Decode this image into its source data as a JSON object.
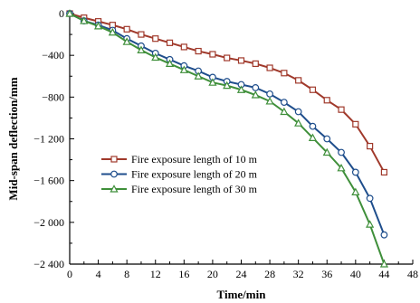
{
  "chart_data": {
    "type": "line",
    "xlabel": "Time/min",
    "ylabel": "Mid-span deflection/mm",
    "xlim": [
      0,
      48
    ],
    "ylim": [
      -2400,
      0
    ],
    "x_ticks": [
      0,
      4,
      8,
      12,
      16,
      20,
      24,
      28,
      32,
      36,
      40,
      44,
      48
    ],
    "y_ticks": [
      0,
      -400,
      -800,
      -1200,
      -1600,
      -2000,
      -2400
    ],
    "x_tick_labels": [
      "0",
      "4",
      "8",
      "12",
      "16",
      "20",
      "24",
      "28",
      "32",
      "36",
      "40",
      "44",
      "48"
    ],
    "y_tick_labels": [
      "0",
      "−400",
      "−800",
      "−1 200",
      "−1 600",
      "−2 000",
      "−2 400"
    ],
    "grid": false,
    "legend_position": "center-left",
    "series": [
      {
        "name": "Fire exposure length of 10 m",
        "color": "#a0392b",
        "marker": "square",
        "x": [
          0,
          2,
          4,
          6,
          8,
          10,
          12,
          14,
          16,
          18,
          20,
          22,
          24,
          26,
          28,
          30,
          32,
          34,
          36,
          38,
          40,
          42,
          44
        ],
        "y": [
          0,
          -40,
          -75,
          -110,
          -150,
          -200,
          -240,
          -280,
          -320,
          -360,
          -390,
          -425,
          -450,
          -480,
          -520,
          -570,
          -640,
          -730,
          -830,
          -920,
          -1060,
          -1270,
          -1520
        ]
      },
      {
        "name": "Fire exposure length of 20 m",
        "color": "#1f4e8c",
        "marker": "circle",
        "x": [
          0,
          2,
          4,
          6,
          8,
          10,
          12,
          14,
          16,
          18,
          20,
          22,
          24,
          26,
          28,
          30,
          32,
          34,
          36,
          38,
          40,
          42,
          44
        ],
        "y": [
          0,
          -70,
          -110,
          -160,
          -240,
          -310,
          -380,
          -440,
          -500,
          -550,
          -610,
          -650,
          -680,
          -710,
          -770,
          -850,
          -940,
          -1080,
          -1200,
          -1330,
          -1520,
          -1770,
          -2120
        ]
      },
      {
        "name": "Fire exposure length of 30 m",
        "color": "#3f8f3a",
        "marker": "triangle",
        "x": [
          0,
          2,
          4,
          6,
          8,
          10,
          12,
          14,
          16,
          18,
          20,
          22,
          24,
          26,
          28,
          30,
          32,
          34,
          36,
          38,
          40,
          42,
          44
        ],
        "y": [
          0,
          -70,
          -120,
          -180,
          -270,
          -350,
          -420,
          -480,
          -540,
          -600,
          -660,
          -690,
          -730,
          -780,
          -840,
          -940,
          -1050,
          -1190,
          -1330,
          -1480,
          -1710,
          -2020,
          -2400
        ]
      }
    ]
  }
}
